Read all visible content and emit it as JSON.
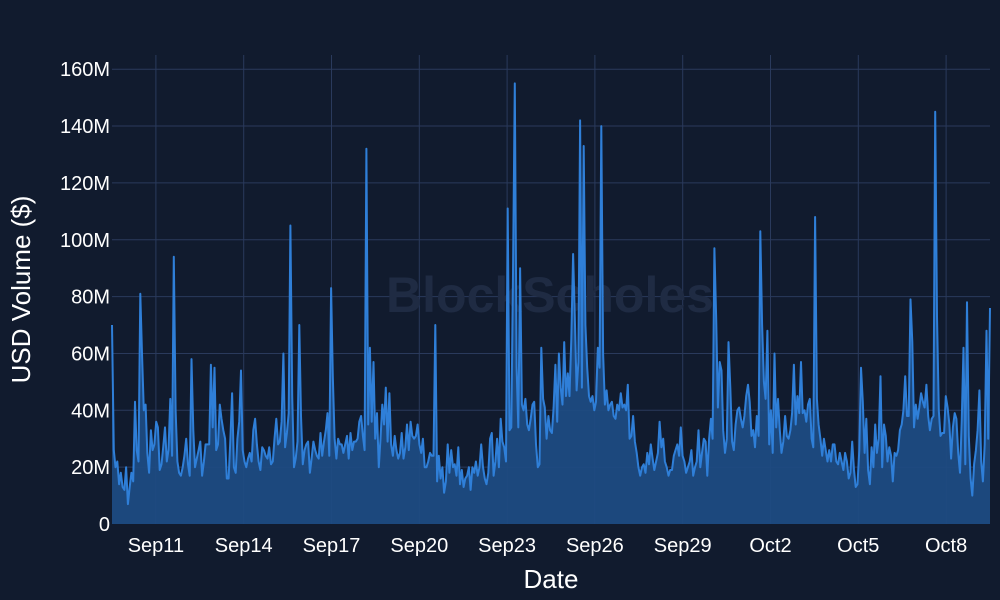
{
  "chart_data": {
    "type": "area",
    "title": "",
    "xlabel": "Date",
    "ylabel": "USD Volume ($)",
    "watermark": "BlockScholes",
    "x_start": "2023-09-09T12:00",
    "x_end": "2023-10-09T12:00",
    "sample_interval_hours": 1,
    "ylim": [
      0,
      165000000
    ],
    "y_ticks": [
      0,
      20000000,
      40000000,
      60000000,
      80000000,
      100000000,
      120000000,
      140000000,
      160000000
    ],
    "y_tick_labels": [
      "0",
      "20M",
      "40M",
      "60M",
      "80M",
      "100M",
      "120M",
      "140M",
      "160M"
    ],
    "x_ticks": [
      "2023-09-11",
      "2023-09-14",
      "2023-09-17",
      "2023-09-20",
      "2023-09-23",
      "2023-09-26",
      "2023-09-29",
      "2023-10-02",
      "2023-10-05",
      "2023-10-08"
    ],
    "x_tick_labels": [
      "Sep11",
      "Sep14",
      "Sep17",
      "Sep20",
      "Sep23",
      "Sep26",
      "Sep29",
      "Oct2",
      "Oct5",
      "Oct8"
    ],
    "grid": true,
    "colors": {
      "background": "#111b2e",
      "line": "#2f7fd8",
      "fill": "#1e4b82",
      "grid": "#2a3a5c",
      "text": "#ffffff"
    },
    "series": [
      {
        "values": [
          70,
          26,
          20,
          22,
          14,
          18,
          13,
          12,
          20,
          7,
          13,
          18,
          15,
          43,
          26,
          22,
          81,
          60,
          40,
          42,
          25,
          18,
          33,
          26,
          28,
          36,
          34,
          19,
          21,
          27,
          34,
          22,
          26,
          44,
          24,
          94,
          40,
          22,
          18,
          17,
          20,
          24,
          30,
          21,
          17,
          58,
          33,
          20,
          23,
          26,
          29,
          17,
          22,
          28,
          28,
          28,
          56,
          34,
          55,
          26,
          28,
          42,
          37,
          33,
          30,
          16,
          16,
          30,
          46,
          20,
          18,
          30,
          36,
          54,
          26,
          22,
          20,
          23,
          25,
          22,
          33,
          37,
          28,
          22,
          19,
          27,
          26,
          24,
          23,
          27,
          21,
          22,
          30,
          37,
          28,
          29,
          36,
          60,
          27,
          32,
          39,
          105,
          45,
          20,
          23,
          29,
          70,
          38,
          21,
          26,
          28,
          29,
          18,
          23,
          29,
          26,
          24,
          23,
          32,
          24,
          29,
          33,
          39,
          24,
          83,
          52,
          30,
          23,
          30,
          28,
          28,
          25,
          28,
          31,
          23,
          32,
          26,
          29,
          29,
          30,
          36,
          38,
          31,
          26,
          132,
          35,
          62,
          36,
          57,
          30,
          39,
          20,
          30,
          42,
          35,
          48,
          29,
          46,
          28,
          24,
          31,
          26,
          23,
          25,
          32,
          23,
          27,
          35,
          26,
          36,
          31,
          30,
          31,
          35,
          28,
          25,
          30,
          20,
          20,
          22,
          25,
          24,
          24,
          70,
          15,
          24,
          16,
          20,
          11,
          15,
          28,
          18,
          26,
          20,
          21,
          17,
          27,
          14,
          19,
          13,
          16,
          17,
          20,
          12,
          20,
          18,
          22,
          17,
          20,
          28,
          20,
          16,
          14,
          18,
          30,
          32,
          17,
          22,
          30,
          20,
          37,
          29,
          27,
          22,
          111,
          33,
          34,
          88,
          155,
          55,
          34,
          90,
          42,
          40,
          44,
          35,
          33,
          37,
          42,
          43,
          28,
          20,
          21,
          62,
          44,
          41,
          30,
          38,
          33,
          32,
          41,
          56,
          36,
          60,
          48,
          42,
          64,
          45,
          53,
          45,
          65,
          95,
          73,
          47,
          57,
          142,
          48,
          133,
          70,
          55,
          45,
          43,
          45,
          40,
          43,
          62,
          55,
          140,
          60,
          42,
          47,
          40,
          42,
          43,
          38,
          37,
          42,
          40,
          46,
          41,
          42,
          40,
          49,
          30,
          31,
          38,
          29,
          25,
          20,
          17,
          20,
          21,
          18,
          25,
          21,
          28,
          23,
          19,
          22,
          25,
          36,
          27,
          30,
          22,
          20,
          17,
          19,
          19,
          24,
          26,
          28,
          24,
          34,
          24,
          22,
          18,
          20,
          22,
          26,
          17,
          20,
          22,
          33,
          20,
          25,
          30,
          29,
          17,
          30,
          37,
          30,
          97,
          72,
          41,
          57,
          54,
          33,
          25,
          30,
          64,
          48,
          29,
          26,
          35,
          40,
          41,
          37,
          34,
          38,
          45,
          49,
          43,
          31,
          33,
          27,
          38,
          31,
          103,
          70,
          50,
          44,
          68,
          28,
          40,
          25,
          60,
          34,
          44,
          33,
          25,
          29,
          38,
          31,
          30,
          33,
          39,
          56,
          35,
          45,
          39,
          57,
          39,
          40,
          36,
          42,
          44,
          30,
          27,
          108,
          44,
          35,
          30,
          24,
          30,
          26,
          22,
          26,
          22,
          28,
          28,
          22,
          21,
          25,
          22,
          19,
          25,
          22,
          16,
          18,
          29,
          19,
          13,
          14,
          26,
          55,
          43,
          25,
          37,
          19,
          14,
          27,
          20,
          35,
          25,
          30,
          52,
          20,
          35,
          31,
          22,
          27,
          24,
          15,
          25,
          24,
          26,
          33,
          35,
          40,
          52,
          38,
          38,
          79,
          64,
          34,
          42,
          37,
          41,
          46,
          43,
          41,
          49,
          38,
          33,
          37,
          38,
          145,
          73,
          40,
          31,
          32,
          32,
          45,
          41,
          35,
          23,
          34,
          39,
          37,
          25,
          18,
          36,
          62,
          21,
          78,
          31,
          16,
          10,
          21,
          26,
          33,
          47,
          22,
          15,
          28,
          68,
          30,
          76
        ],
        "unit": "M"
      }
    ]
  }
}
